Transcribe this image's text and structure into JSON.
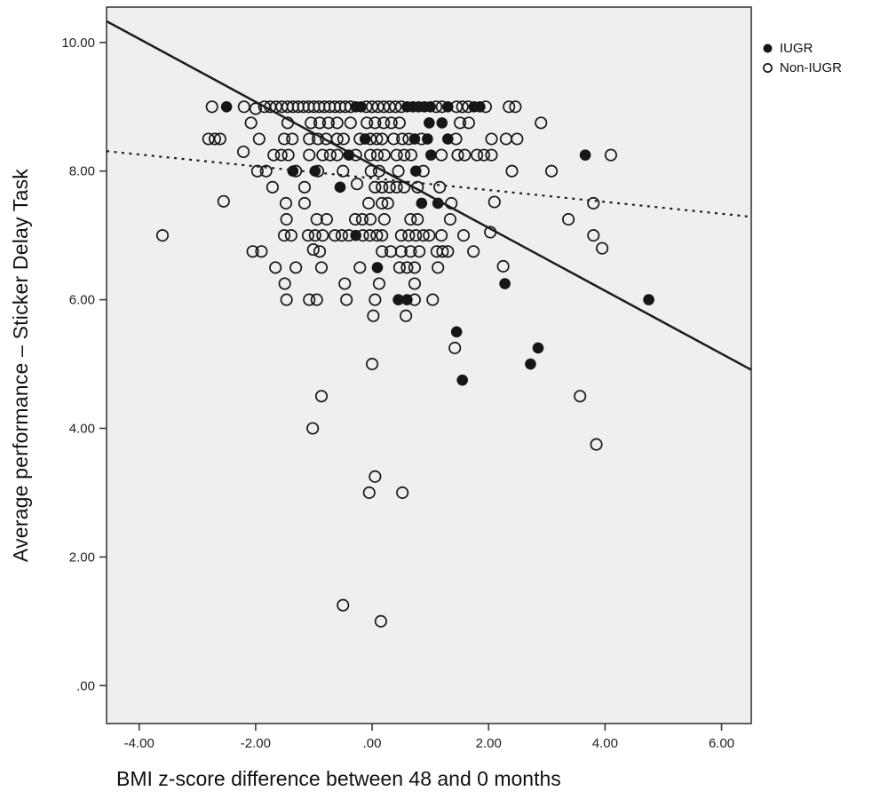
{
  "figure": {
    "background": "#ffffff",
    "plot_background": "#f0eff0",
    "border_color": "#3a3a3a",
    "point_color": "#161616"
  },
  "legend": {
    "items": [
      {
        "label": "IUGR",
        "marker": "filled-circle"
      },
      {
        "label": "Non-IUGR",
        "marker": "open-circle"
      }
    ]
  },
  "chart_data": {
    "type": "scatter",
    "title": "",
    "xlabel": "BMI z-score difference between 48 and 0 months",
    "ylabel": "Average performance – Sticker Delay Task",
    "xlim": [
      -4.56,
      6.51
    ],
    "ylim": [
      -0.59,
      10.55
    ],
    "grid": false,
    "legend_position": "outside-top-right",
    "x_ticks": {
      "values": [
        -4,
        -2,
        0,
        2,
        4,
        6
      ],
      "labels": [
        "-4.00",
        "-2.00",
        ".00",
        "2.00",
        "4.00",
        "6.00"
      ]
    },
    "y_ticks": {
      "values": [
        0,
        2,
        4,
        6,
        8,
        10
      ],
      "labels": [
        ".00",
        "2.00",
        "4.00",
        "6.00",
        "8.00",
        "10.00"
      ]
    },
    "series": [
      {
        "name": "IUGR",
        "marker": "filled",
        "points": [
          [
            -2.5,
            9.0
          ],
          [
            -0.28,
            9.0
          ],
          [
            -0.19,
            9.0
          ],
          [
            0.6,
            9.0
          ],
          [
            0.7,
            9.0
          ],
          [
            0.8,
            9.0
          ],
          [
            0.9,
            9.0
          ],
          [
            1.0,
            9.0
          ],
          [
            1.3,
            9.0
          ],
          [
            1.75,
            9.0
          ],
          [
            1.85,
            9.0
          ],
          [
            0.98,
            8.75
          ],
          [
            1.2,
            8.75
          ],
          [
            -0.12,
            8.5
          ],
          [
            0.73,
            8.5
          ],
          [
            0.95,
            8.5
          ],
          [
            1.3,
            8.5
          ],
          [
            -0.4,
            8.25
          ],
          [
            1.01,
            8.25
          ],
          [
            3.66,
            8.25
          ],
          [
            -1.36,
            8.0
          ],
          [
            -0.98,
            8.0
          ],
          [
            0.75,
            8.0
          ],
          [
            -0.55,
            7.75
          ],
          [
            0.85,
            7.5
          ],
          [
            1.13,
            7.5
          ],
          [
            -0.28,
            7.0
          ],
          [
            0.09,
            6.5
          ],
          [
            2.28,
            6.25
          ],
          [
            0.45,
            6.0
          ],
          [
            0.6,
            6.0
          ],
          [
            4.75,
            6.0
          ],
          [
            1.45,
            5.5
          ],
          [
            2.85,
            5.25
          ],
          [
            2.72,
            5.0
          ],
          [
            1.55,
            4.75
          ]
        ]
      },
      {
        "name": "Non-IUGR",
        "marker": "open",
        "points": [
          [
            -2.75,
            9.0
          ],
          [
            -2.2,
            9.0
          ],
          [
            -2.0,
            8.97
          ],
          [
            -1.85,
            9.0
          ],
          [
            -1.75,
            9.0
          ],
          [
            -1.65,
            9.0
          ],
          [
            -1.55,
            9.0
          ],
          [
            -1.45,
            9.0
          ],
          [
            -1.36,
            9.0
          ],
          [
            -1.27,
            9.0
          ],
          [
            -1.18,
            9.0
          ],
          [
            -1.09,
            9.0
          ],
          [
            -1.0,
            9.0
          ],
          [
            -0.91,
            9.0
          ],
          [
            -0.82,
            9.0
          ],
          [
            -0.73,
            9.0
          ],
          [
            -0.64,
            9.0
          ],
          [
            -0.55,
            9.0
          ],
          [
            -0.46,
            9.0
          ],
          [
            -0.37,
            9.0
          ],
          [
            -0.1,
            9.0
          ],
          [
            0.0,
            9.0
          ],
          [
            0.1,
            9.0
          ],
          [
            0.2,
            9.0
          ],
          [
            0.3,
            9.0
          ],
          [
            0.4,
            9.0
          ],
          [
            0.5,
            9.0
          ],
          [
            1.1,
            9.0
          ],
          [
            1.2,
            9.0
          ],
          [
            1.45,
            9.0
          ],
          [
            1.55,
            9.0
          ],
          [
            1.65,
            9.0
          ],
          [
            1.95,
            9.0
          ],
          [
            2.35,
            9.0
          ],
          [
            2.46,
            9.0
          ],
          [
            -2.08,
            8.75
          ],
          [
            -1.45,
            8.75
          ],
          [
            -1.05,
            8.75
          ],
          [
            -0.9,
            8.75
          ],
          [
            -0.75,
            8.75
          ],
          [
            -0.6,
            8.75
          ],
          [
            -0.37,
            8.75
          ],
          [
            -0.09,
            8.75
          ],
          [
            0.05,
            8.75
          ],
          [
            0.2,
            8.75
          ],
          [
            0.33,
            8.75
          ],
          [
            0.47,
            8.75
          ],
          [
            1.51,
            8.75
          ],
          [
            1.66,
            8.75
          ],
          [
            2.9,
            8.75
          ],
          [
            -2.81,
            8.5
          ],
          [
            -2.7,
            8.5
          ],
          [
            -2.61,
            8.5
          ],
          [
            -1.94,
            8.5
          ],
          [
            -1.51,
            8.5
          ],
          [
            -1.37,
            8.5
          ],
          [
            -1.08,
            8.5
          ],
          [
            -0.93,
            8.5
          ],
          [
            -0.79,
            8.5
          ],
          [
            -0.6,
            8.5
          ],
          [
            -0.49,
            8.5
          ],
          [
            -0.21,
            8.5
          ],
          [
            -0.03,
            8.5
          ],
          [
            0.08,
            8.5
          ],
          [
            0.17,
            8.5
          ],
          [
            0.37,
            8.5
          ],
          [
            0.52,
            8.5
          ],
          [
            0.63,
            8.5
          ],
          [
            0.85,
            8.5
          ],
          [
            1.44,
            8.5
          ],
          [
            2.05,
            8.5
          ],
          [
            2.3,
            8.5
          ],
          [
            2.49,
            8.5
          ],
          [
            -2.21,
            8.3
          ],
          [
            -1.69,
            8.25
          ],
          [
            -1.56,
            8.25
          ],
          [
            -1.44,
            8.25
          ],
          [
            -1.08,
            8.25
          ],
          [
            -0.85,
            8.25
          ],
          [
            -0.72,
            8.25
          ],
          [
            -0.6,
            8.25
          ],
          [
            -0.28,
            8.25
          ],
          [
            -0.03,
            8.25
          ],
          [
            0.09,
            8.25
          ],
          [
            0.21,
            8.25
          ],
          [
            0.42,
            8.25
          ],
          [
            0.55,
            8.25
          ],
          [
            0.67,
            8.25
          ],
          [
            1.19,
            8.25
          ],
          [
            1.47,
            8.25
          ],
          [
            1.59,
            8.25
          ],
          [
            1.8,
            8.25
          ],
          [
            1.92,
            8.25
          ],
          [
            2.05,
            8.25
          ],
          [
            4.1,
            8.25
          ],
          [
            -1.97,
            8.0
          ],
          [
            -1.82,
            8.0
          ],
          [
            -1.31,
            8.0
          ],
          [
            -0.93,
            8.0
          ],
          [
            -0.5,
            8.0
          ],
          [
            -0.02,
            8.0
          ],
          [
            0.12,
            8.0
          ],
          [
            0.45,
            8.0
          ],
          [
            0.88,
            8.0
          ],
          [
            2.4,
            8.0
          ],
          [
            3.08,
            8.0
          ],
          [
            -1.71,
            7.75
          ],
          [
            -1.16,
            7.75
          ],
          [
            -0.26,
            7.8
          ],
          [
            0.05,
            7.75
          ],
          [
            0.17,
            7.75
          ],
          [
            0.3,
            7.75
          ],
          [
            0.42,
            7.75
          ],
          [
            0.55,
            7.75
          ],
          [
            0.78,
            7.75
          ],
          [
            1.16,
            7.75
          ],
          [
            -2.55,
            7.53
          ],
          [
            -1.48,
            7.5
          ],
          [
            -1.16,
            7.5
          ],
          [
            -0.06,
            7.5
          ],
          [
            0.17,
            7.5
          ],
          [
            0.27,
            7.5
          ],
          [
            1.36,
            7.5
          ],
          [
            2.1,
            7.52
          ],
          [
            3.8,
            7.5
          ],
          [
            -1.47,
            7.25
          ],
          [
            -0.95,
            7.25
          ],
          [
            -0.78,
            7.25
          ],
          [
            -0.29,
            7.25
          ],
          [
            -0.17,
            7.25
          ],
          [
            -0.03,
            7.25
          ],
          [
            0.21,
            7.25
          ],
          [
            0.66,
            7.25
          ],
          [
            0.78,
            7.25
          ],
          [
            1.34,
            7.25
          ],
          [
            3.37,
            7.25
          ],
          [
            -3.6,
            7.0
          ],
          [
            -1.51,
            7.0
          ],
          [
            -1.39,
            7.0
          ],
          [
            -1.1,
            7.0
          ],
          [
            -0.98,
            7.0
          ],
          [
            -0.85,
            7.0
          ],
          [
            -0.64,
            7.0
          ],
          [
            -0.52,
            7.0
          ],
          [
            -0.4,
            7.0
          ],
          [
            -0.16,
            7.0
          ],
          [
            -0.04,
            7.0
          ],
          [
            0.08,
            7.0
          ],
          [
            0.17,
            7.0
          ],
          [
            0.5,
            7.0
          ],
          [
            0.63,
            7.0
          ],
          [
            0.75,
            7.0
          ],
          [
            0.88,
            7.0
          ],
          [
            0.98,
            7.0
          ],
          [
            1.19,
            7.0
          ],
          [
            1.57,
            7.0
          ],
          [
            2.03,
            7.05
          ],
          [
            3.8,
            7.0
          ],
          [
            -2.05,
            6.75
          ],
          [
            -1.9,
            6.75
          ],
          [
            -1.01,
            6.78
          ],
          [
            -0.9,
            6.75
          ],
          [
            0.17,
            6.75
          ],
          [
            0.32,
            6.75
          ],
          [
            0.5,
            6.75
          ],
          [
            0.66,
            6.75
          ],
          [
            0.81,
            6.75
          ],
          [
            1.11,
            6.75
          ],
          [
            1.21,
            6.75
          ],
          [
            1.3,
            6.75
          ],
          [
            1.74,
            6.75
          ],
          [
            3.95,
            6.8
          ],
          [
            -1.66,
            6.5
          ],
          [
            -1.31,
            6.5
          ],
          [
            -0.87,
            6.5
          ],
          [
            -0.21,
            6.5
          ],
          [
            0.47,
            6.5
          ],
          [
            0.6,
            6.5
          ],
          [
            0.73,
            6.5
          ],
          [
            1.13,
            6.5
          ],
          [
            2.25,
            6.52
          ],
          [
            -1.5,
            6.25
          ],
          [
            -0.47,
            6.25
          ],
          [
            0.12,
            6.25
          ],
          [
            0.73,
            6.25
          ],
          [
            -1.47,
            6.0
          ],
          [
            -1.08,
            6.0
          ],
          [
            -0.95,
            6.0
          ],
          [
            -0.44,
            6.0
          ],
          [
            0.05,
            6.0
          ],
          [
            0.73,
            6.0
          ],
          [
            1.04,
            6.0
          ],
          [
            0.02,
            5.75
          ],
          [
            0.58,
            5.75
          ],
          [
            1.42,
            5.25
          ],
          [
            0.0,
            5.0
          ],
          [
            -0.87,
            4.5
          ],
          [
            3.57,
            4.5
          ],
          [
            -1.02,
            4.0
          ],
          [
            3.85,
            3.75
          ],
          [
            0.05,
            3.25
          ],
          [
            -0.05,
            3.0
          ],
          [
            0.52,
            3.0
          ],
          [
            -0.5,
            1.25
          ],
          [
            0.15,
            1.0
          ]
        ]
      }
    ],
    "fit_lines": [
      {
        "name": "IUGR fit line",
        "style": "solid",
        "x1": -4.56,
        "y1": 10.33,
        "x2": 6.51,
        "y2": 4.91
      },
      {
        "name": "Non-IUGR fit line",
        "style": "dotted",
        "x1": -4.56,
        "y1": 8.31,
        "x2": 6.51,
        "y2": 7.29
      }
    ]
  }
}
